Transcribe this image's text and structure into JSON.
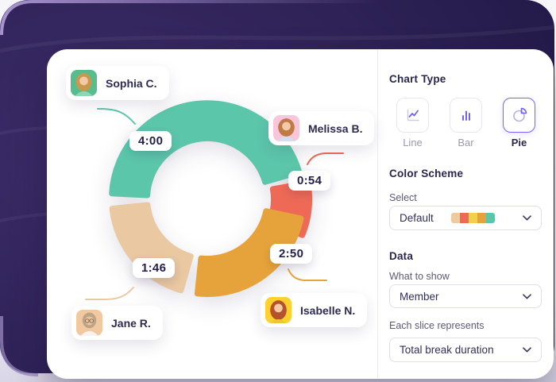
{
  "theme": {
    "accent_purple": "#7c63f5",
    "dark_bg": "#2e2256",
    "heading_color": "#2a2550"
  },
  "chart_data": {
    "type": "pie",
    "style": "donut",
    "legend_position": "floating-labels",
    "title": "",
    "value_unit": "h:mm",
    "center": [
      202,
      188
    ],
    "outer_radius": 124,
    "inner_radius": 72,
    "slices": [
      {
        "label": "Sophia C.",
        "value": "4:00",
        "minutes": 240,
        "color": "#5cc6aa",
        "start_deg": -87,
        "end_deg": 74,
        "offset": [
          0,
          0
        ]
      },
      {
        "label": "Melissa B.",
        "value": "0:54",
        "minutes": 54,
        "color": "#ee6a57",
        "start_deg": 80,
        "end_deg": 112,
        "offset": [
          8,
          1
        ]
      },
      {
        "label": "Isabelle N.",
        "value": "2:50",
        "minutes": 170,
        "color": "#e7a33b",
        "start_deg": 102,
        "end_deg": 186,
        "offset": [
          0,
          0
        ]
      },
      {
        "label": "Jane R.",
        "value": "1:46",
        "minutes": 106,
        "color": "#e9c8a2",
        "start_deg": 196,
        "end_deg": 264,
        "offset": [
          0,
          0
        ]
      }
    ]
  },
  "members": [
    {
      "name": "Sophia C.",
      "time": "4:00",
      "avatar_bg": "#58bd8c",
      "hair": "#c9984f",
      "skin": "#f3c9a6",
      "shirt": "#8fd6b6"
    },
    {
      "name": "Melissa B.",
      "time": "0:54",
      "avatar_bg": "#f8c6db",
      "hair": "#c07a45",
      "skin": "#f3c9a6",
      "shirt": "#cfe0ee"
    },
    {
      "name": "Jane R.",
      "time": "1:46",
      "avatar_bg": "#f2c89f",
      "hair": "#bba586",
      "skin": "#edc29d",
      "shirt": "#f7f4f0"
    },
    {
      "name": "Isabelle N.",
      "time": "2:50",
      "avatar_bg": "#ffd02e",
      "hair": "#b5522c",
      "skin": "#f3c9a6",
      "shirt": "#eec33d"
    }
  ],
  "sidebar": {
    "chart_type": {
      "heading": "Chart Type",
      "options": [
        {
          "label": "Line",
          "selected": false
        },
        {
          "label": "Bar",
          "selected": false
        },
        {
          "label": "Pie",
          "selected": true
        }
      ]
    },
    "color_scheme": {
      "heading": "Color Scheme",
      "select_label": "Select",
      "value": "Default",
      "swatches": [
        "#eeca9f",
        "#ee6a57",
        "#f2d04e",
        "#e7a33b",
        "#5cc6aa"
      ]
    },
    "data": {
      "heading": "Data",
      "what_to_show_label": "What to show",
      "what_to_show_value": "Member",
      "slice_label": "Each slice represents",
      "slice_value": "Total break duration"
    }
  }
}
